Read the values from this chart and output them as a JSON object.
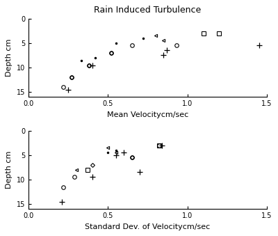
{
  "title": "Rain Induced Turbulence",
  "top_xlabel": "Mean Velocitycm/sec",
  "top_ylabel": "Depth cm",
  "bot_xlabel": "Standard Dev. of Velocitycm/sec",
  "bot_ylabel": "Depth cm",
  "xlim": [
    0,
    1.5
  ],
  "ylim": [
    16,
    0
  ],
  "xticks": [
    0,
    0.5,
    1.0,
    1.5
  ],
  "yticks": [
    0,
    5,
    10,
    15
  ],
  "top_series": {
    "circle": {
      "x": [
        0.22,
        0.27,
        0.38,
        0.52,
        0.65,
        0.93
      ],
      "y": [
        14,
        12,
        9.5,
        7.0,
        5.5,
        5.5
      ]
    },
    "square": {
      "x": [
        1.1,
        1.2
      ],
      "y": [
        3.0,
        3.0
      ]
    },
    "plus": {
      "x": [
        0.25,
        0.4,
        0.87,
        0.85,
        1.45
      ],
      "y": [
        14.5,
        9.5,
        6.5,
        7.5,
        5.5
      ]
    },
    "dot": {
      "x": [
        0.33,
        0.42,
        0.55,
        0.72
      ],
      "y": [
        8.5,
        8.0,
        5.0,
        4.0
      ]
    },
    "tri_left": {
      "x": [
        0.8,
        0.85
      ],
      "y": [
        3.5,
        4.5
      ]
    },
    "diamond": {
      "x": [
        0.27,
        0.38,
        0.52
      ],
      "y": [
        12,
        9.5,
        7.0
      ]
    }
  },
  "bot_series": {
    "circle": {
      "x": [
        0.22,
        0.29,
        0.65,
        0.82
      ],
      "y": [
        11.5,
        9.5,
        5.5,
        3.0
      ]
    },
    "square": {
      "x": [
        0.37,
        0.82
      ],
      "y": [
        8.0,
        3.0
      ]
    },
    "plus": {
      "x": [
        0.21,
        0.4,
        0.55,
        0.6,
        0.7,
        0.84
      ],
      "y": [
        14.5,
        9.5,
        5.0,
        4.5,
        8.5,
        3.0
      ]
    },
    "dot": {
      "x": [
        0.5,
        0.55
      ],
      "y": [
        4.5,
        4.0
      ]
    },
    "tri_left": {
      "x": [
        0.3,
        0.5,
        0.55
      ],
      "y": [
        8.0,
        3.5,
        4.5
      ]
    },
    "diamond": {
      "x": [
        0.4,
        0.65
      ],
      "y": [
        7.0,
        5.5
      ]
    }
  },
  "bg_color": "#ffffff",
  "marker_color": "black",
  "marker_size": 4,
  "fontsize_title": 9,
  "fontsize_label": 8,
  "fontsize_tick": 7
}
